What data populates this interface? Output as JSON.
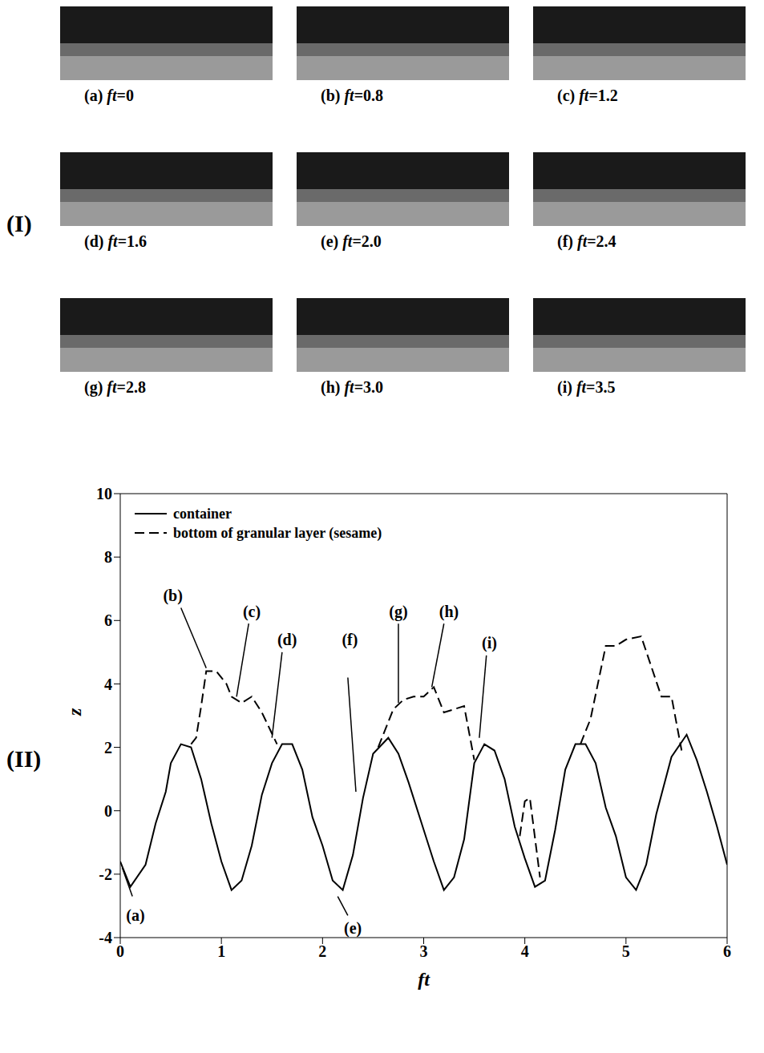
{
  "figure": {
    "part_labels": [
      "(I)",
      "(II)"
    ],
    "photos": [
      {
        "label": "(a)",
        "caption": "ft=0"
      },
      {
        "label": "(b)",
        "caption": "ft=0.8"
      },
      {
        "label": "(c)",
        "caption": "ft=1.2"
      },
      {
        "label": "(d)",
        "caption": "ft=1.6"
      },
      {
        "label": "(e)",
        "caption": "ft=2.0"
      },
      {
        "label": "(f)",
        "caption": "ft=2.4"
      },
      {
        "label": "(g)",
        "caption": "ft=2.8"
      },
      {
        "label": "(h)",
        "caption": "ft=3.0"
      },
      {
        "label": "(i)",
        "caption": "ft=3.5"
      }
    ]
  },
  "chart_data": {
    "type": "line",
    "x_label": "ft",
    "y_label": "z",
    "xlim": [
      0,
      6
    ],
    "xticks": [
      0,
      1,
      2,
      3,
      4,
      5,
      6
    ],
    "ylim": [
      -4,
      10
    ],
    "yticks": [
      -4,
      -2,
      0,
      2,
      4,
      6,
      8,
      10
    ],
    "legend": "upper left",
    "series": [
      {
        "name": "container",
        "color": "#000000",
        "line_style": "solid",
        "x": [
          0,
          0.1,
          0.25,
          0.35,
          0.45,
          0.5,
          0.6,
          0.7,
          0.8,
          0.9,
          1.0,
          1.1,
          1.2,
          1.3,
          1.4,
          1.5,
          1.6,
          1.7,
          1.8,
          1.9,
          2.0,
          2.1,
          2.2,
          2.3,
          2.4,
          2.5,
          2.65,
          2.75,
          2.85,
          3.0,
          3.1,
          3.2,
          3.3,
          3.4,
          3.5,
          3.6,
          3.7,
          3.8,
          3.9,
          4.0,
          4.1,
          4.2,
          4.3,
          4.4,
          4.5,
          4.6,
          4.7,
          4.8,
          4.9,
          5.0,
          5.1,
          5.2,
          5.3,
          5.45,
          5.6,
          5.7,
          5.8,
          5.9,
          6.0
        ],
        "values": [
          -1.6,
          -2.4,
          -1.7,
          -0.4,
          0.6,
          1.5,
          2.1,
          2.0,
          1.0,
          -0.4,
          -1.6,
          -2.5,
          -2.2,
          -1.1,
          0.5,
          1.5,
          2.1,
          2.1,
          1.3,
          -0.2,
          -1.1,
          -2.2,
          -2.5,
          -1.4,
          0.4,
          1.8,
          2.3,
          1.8,
          0.9,
          -0.6,
          -1.6,
          -2.5,
          -2.1,
          -0.9,
          1.5,
          2.1,
          1.9,
          1.0,
          -0.5,
          -1.5,
          -2.4,
          -2.2,
          -0.6,
          1.3,
          2.1,
          2.1,
          1.5,
          0.1,
          -0.8,
          -2.1,
          -2.5,
          -1.7,
          -0.1,
          1.7,
          2.4,
          1.6,
          0.6,
          -0.5,
          -1.7
        ]
      },
      {
        "name": "bottom of granular layer (sesame)",
        "color": "#000000",
        "line_style": "dashed",
        "x": [
          0.7,
          0.75,
          0.8,
          0.85,
          0.95,
          1.05,
          1.1,
          1.2,
          1.3,
          1.4,
          1.55,
          2.0,
          2.55,
          2.7,
          2.8,
          2.9,
          3.0,
          3.1,
          3.2,
          3.3,
          3.4,
          3.5,
          3.7,
          3.95,
          4.0,
          4.05,
          4.15,
          4.4,
          4.55,
          4.65,
          4.8,
          4.9,
          5.0,
          5.15,
          5.35,
          5.45,
          5.55
        ],
        "values": [
          2.1,
          2.3,
          3.3,
          4.4,
          4.4,
          4.0,
          3.6,
          3.4,
          3.6,
          3.1,
          2.1,
          null,
          2.0,
          3.2,
          3.5,
          3.6,
          3.6,
          3.9,
          3.1,
          3.2,
          3.3,
          1.6,
          null,
          -0.8,
          0.3,
          0.4,
          -2.1,
          null,
          2.1,
          2.9,
          5.2,
          5.2,
          5.4,
          5.5,
          3.6,
          3.6,
          1.9
        ]
      }
    ],
    "annotations": [
      {
        "text": "(a)",
        "x": 0.15,
        "y": -3.3,
        "line": [
          [
            0.02,
            -1.8
          ],
          [
            0.12,
            -2.7
          ]
        ]
      },
      {
        "text": "(b)",
        "x": 0.52,
        "y": 6.8,
        "line": [
          [
            0.6,
            6.4
          ],
          [
            0.85,
            4.5
          ]
        ]
      },
      {
        "text": "(c)",
        "x": 1.3,
        "y": 6.3,
        "line": [
          [
            1.27,
            5.9
          ],
          [
            1.15,
            3.6
          ]
        ]
      },
      {
        "text": "(d)",
        "x": 1.65,
        "y": 5.4,
        "line": [
          [
            1.6,
            5.0
          ],
          [
            1.5,
            2.3
          ]
        ]
      },
      {
        "text": "(e)",
        "x": 2.3,
        "y": -3.7,
        "line": [
          [
            2.15,
            -2.7
          ],
          [
            2.25,
            -3.3
          ]
        ]
      },
      {
        "text": "(f)",
        "x": 2.27,
        "y": 5.4,
        "line": [
          [
            2.25,
            4.2
          ],
          [
            2.33,
            0.6
          ]
        ]
      },
      {
        "text": "(g)",
        "x": 2.75,
        "y": 6.3,
        "line": [
          [
            2.75,
            5.9
          ],
          [
            2.75,
            3.4
          ]
        ]
      },
      {
        "text": "(h)",
        "x": 3.25,
        "y": 6.3,
        "line": [
          [
            3.2,
            5.9
          ],
          [
            3.08,
            3.9
          ]
        ]
      },
      {
        "text": "(i)",
        "x": 3.65,
        "y": 5.3,
        "line": [
          [
            3.62,
            4.9
          ],
          [
            3.55,
            2.3
          ]
        ]
      }
    ]
  }
}
